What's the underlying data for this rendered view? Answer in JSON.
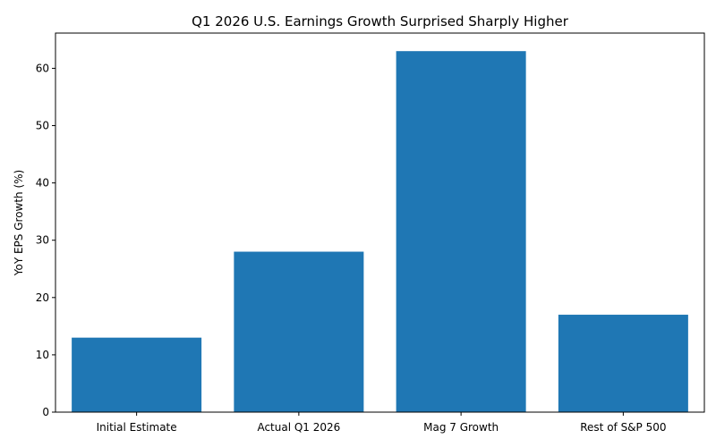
{
  "chart_data": {
    "type": "bar",
    "title": "Q1 2026 U.S. Earnings Growth Surprised Sharply Higher",
    "xlabel": "",
    "ylabel": "YoY EPS Growth (%)",
    "categories": [
      "Initial Estimate",
      "Actual Q1 2026",
      "Mag 7 Growth",
      "Rest of S&P 500"
    ],
    "values": [
      13,
      28,
      63,
      17
    ],
    "ylim": [
      0,
      66.15
    ],
    "yticks": [
      0,
      10,
      20,
      30,
      40,
      50,
      60
    ],
    "grid": false,
    "legend": "none",
    "bar_color": "#1f77b4"
  }
}
